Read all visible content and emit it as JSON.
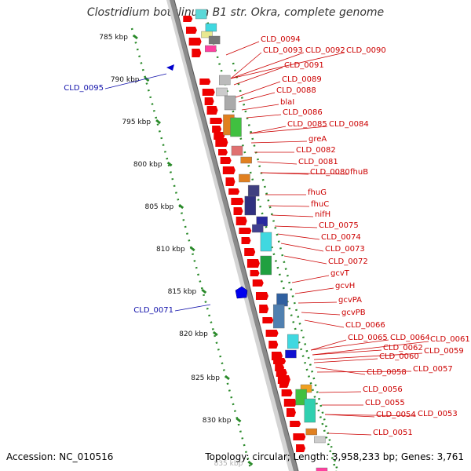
{
  "title": "Clostridium botulinum B1 str. Okra, complete genome",
  "accession": "Accession: NC_010516",
  "topology": "Topology: circular; Length: 3,958,233 bp; Genes: 3,761",
  "colors": {
    "gene": "#ee0000",
    "backbone": "#888888",
    "dots": "#2a8a2a",
    "label_right": "#cc0000",
    "label_left": "#1010aa"
  },
  "ticks": [
    {
      "label": "785 kbp"
    },
    {
      "label": "790 kbp"
    },
    {
      "label": "795 kbp"
    },
    {
      "label": "800 kbp"
    },
    {
      "label": "805 kbp"
    },
    {
      "label": "810 kbp"
    },
    {
      "label": "815 kbp"
    },
    {
      "label": "820 kbp"
    },
    {
      "label": "825 kbp"
    },
    {
      "label": "830 kbp"
    },
    {
      "label": "835 kbp"
    }
  ],
  "labels_left": [
    {
      "text": "CLD_0095"
    },
    {
      "text": "CLD_0071"
    }
  ],
  "labels_right": [
    {
      "text": "CLD_0094"
    },
    {
      "text": "CLD_0093"
    },
    {
      "text": "CLD_0092"
    },
    {
      "text": "CLD_0090"
    },
    {
      "text": "CLD_0091"
    },
    {
      "text": "CLD_0089"
    },
    {
      "text": "CLD_0088"
    },
    {
      "text": "blaI"
    },
    {
      "text": "CLD_0086"
    },
    {
      "text": "CLD_0085"
    },
    {
      "text": "CLD_0084"
    },
    {
      "text": "greA"
    },
    {
      "text": "CLD_0082"
    },
    {
      "text": "CLD_0081"
    },
    {
      "text": "CLD_0080"
    },
    {
      "text": "fhuB"
    },
    {
      "text": "fhuG"
    },
    {
      "text": "fhuC"
    },
    {
      "text": "nifH"
    },
    {
      "text": "CLD_0075"
    },
    {
      "text": "CLD_0074"
    },
    {
      "text": "CLD_0073"
    },
    {
      "text": "CLD_0072"
    },
    {
      "text": "gcvT"
    },
    {
      "text": "gcvH"
    },
    {
      "text": "gcvPA"
    },
    {
      "text": "gcvPB"
    },
    {
      "text": "CLD_0066"
    },
    {
      "text": "CLD_0065"
    },
    {
      "text": "CLD_0064"
    },
    {
      "text": "CLD_0061"
    },
    {
      "text": "CLD_0062"
    },
    {
      "text": "CLD_0059"
    },
    {
      "text": "CLD_0060"
    },
    {
      "text": "CLD_0058"
    },
    {
      "text": "CLD_0057"
    },
    {
      "text": "CLD_0056"
    },
    {
      "text": "CLD_0055"
    },
    {
      "text": "CLD_0054"
    },
    {
      "text": "CLD_0053"
    },
    {
      "text": "CLD_0051"
    }
  ]
}
